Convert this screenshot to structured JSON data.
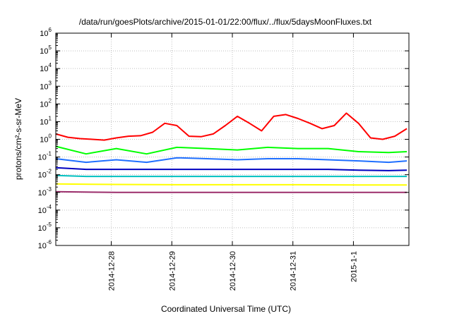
{
  "chart_data": {
    "type": "line",
    "title": "/data/run/goesPlots/archive/2015-01-01/22:00/flux/../flux/5daysMoonFluxes.txt",
    "xlabel": "Coordinated Universal Time (UTC)",
    "ylabel": "protons/cm²-s-sr-MeV",
    "y_scale": "log",
    "ylim": [
      1e-06,
      1000000.0
    ],
    "x_range_days": [
      "2014-12-27 02:00",
      "2015-01-01 22:00"
    ],
    "x_ticks": [
      {
        "label": "2014-12-28",
        "at": "2014-12-28 00:00"
      },
      {
        "label": "2014-12-29",
        "at": "2014-12-29 00:00"
      },
      {
        "label": "2014-12-30",
        "at": "2014-12-30 00:00"
      },
      {
        "label": "2014-12-31",
        "at": "2014-12-31 00:00"
      },
      {
        "label": "2015-1-1",
        "at": "2015-01-01 00:00"
      }
    ],
    "y_ticks": [
      {
        "base": "10",
        "exp": "6"
      },
      {
        "base": "10",
        "exp": "5"
      },
      {
        "base": "10",
        "exp": "4"
      },
      {
        "base": "10",
        "exp": "3"
      },
      {
        "base": "10",
        "exp": "2"
      },
      {
        "base": "10",
        "exp": "1"
      },
      {
        "base": "10",
        "exp": "0"
      },
      {
        "base": "10",
        "exp": "-1"
      },
      {
        "base": "10",
        "exp": "-2"
      },
      {
        "base": "10",
        "exp": "-3"
      },
      {
        "base": "10",
        "exp": "-4"
      },
      {
        "base": "10",
        "exp": "-5"
      },
      {
        "base": "10",
        "exp": "-6"
      }
    ],
    "grid": true,
    "series": [
      {
        "color": "#ff0000",
        "x_days": [
          0,
          0.2,
          0.4,
          0.6,
          0.8,
          1.0,
          1.2,
          1.4,
          1.6,
          1.8,
          2.0,
          2.2,
          2.4,
          2.6,
          2.8,
          3.0,
          3.2,
          3.4,
          3.6,
          3.8,
          4.0,
          4.2,
          4.4,
          4.6,
          4.8,
          5.0,
          5.2,
          5.4,
          5.6,
          5.8
        ],
        "values": [
          2,
          1.3,
          1.1,
          1.0,
          0.9,
          1.2,
          1.5,
          1.6,
          2.5,
          8,
          6,
          1.5,
          1.4,
          2.0,
          6,
          20,
          8,
          3,
          20,
          25,
          15,
          8,
          4,
          6,
          30,
          8,
          1.2,
          1.0,
          1.5,
          4
        ]
      },
      {
        "color": "#00ff00",
        "x_days": [
          0,
          0.5,
          1.0,
          1.5,
          2.0,
          2.5,
          3.0,
          3.5,
          4.0,
          4.5,
          5.0,
          5.5,
          5.8
        ],
        "values": [
          0.4,
          0.15,
          0.3,
          0.15,
          0.35,
          0.3,
          0.25,
          0.35,
          0.3,
          0.3,
          0.2,
          0.18,
          0.2
        ]
      },
      {
        "color": "#1f6fff",
        "x_days": [
          0,
          0.5,
          1.0,
          1.5,
          2.0,
          2.5,
          3.0,
          3.5,
          4.0,
          4.5,
          5.0,
          5.5,
          5.8
        ],
        "values": [
          0.08,
          0.05,
          0.07,
          0.05,
          0.09,
          0.08,
          0.07,
          0.08,
          0.08,
          0.07,
          0.06,
          0.05,
          0.06
        ]
      },
      {
        "color": "#0000c0",
        "x_days": [
          0,
          0.5,
          1.0,
          1.5,
          2.0,
          2.5,
          3.0,
          3.5,
          4.0,
          4.5,
          5.0,
          5.5,
          5.8
        ],
        "values": [
          0.025,
          0.02,
          0.02,
          0.02,
          0.02,
          0.02,
          0.02,
          0.02,
          0.02,
          0.02,
          0.018,
          0.017,
          0.018
        ]
      },
      {
        "color": "#00c0c0",
        "x_days": [
          0,
          0.5,
          1.0,
          1.5,
          2.0,
          2.5,
          3.0,
          3.5,
          4.0,
          4.5,
          5.0,
          5.5,
          5.8
        ],
        "values": [
          0.009,
          0.008,
          0.008,
          0.008,
          0.008,
          0.008,
          0.008,
          0.008,
          0.008,
          0.008,
          0.008,
          0.008,
          0.008
        ]
      },
      {
        "color": "#ffff00",
        "x_days": [
          0,
          1,
          2,
          3,
          4,
          5,
          5.8
        ],
        "values": [
          0.003,
          0.0028,
          0.0027,
          0.0027,
          0.0027,
          0.0026,
          0.0026
        ]
      },
      {
        "color": "#9b2d6b",
        "x_days": [
          0,
          1,
          2,
          3,
          4,
          5,
          5.8
        ],
        "values": [
          0.0011,
          0.001,
          0.001,
          0.001,
          0.001,
          0.001,
          0.001
        ]
      }
    ]
  }
}
